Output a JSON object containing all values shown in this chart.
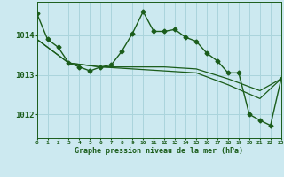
{
  "background_color": "#cce9f0",
  "grid_color": "#aad4dc",
  "line_color": "#1a5c1a",
  "title": "Graphe pression niveau de la mer (hPa)",
  "yticks": [
    1012,
    1013,
    1014
  ],
  "ylim": [
    1011.4,
    1014.85
  ],
  "xlim": [
    0,
    23
  ],
  "series1_x": [
    0,
    1,
    2,
    3,
    4,
    5,
    6,
    7,
    8,
    9,
    10,
    11,
    12,
    13,
    14,
    15,
    16,
    17,
    18,
    19,
    20,
    21,
    22,
    23
  ],
  "series1_y": [
    1014.55,
    1013.9,
    1013.7,
    1013.3,
    1013.2,
    1013.1,
    1013.2,
    1013.25,
    1013.6,
    1014.05,
    1014.6,
    1014.1,
    1014.1,
    1014.15,
    1013.95,
    1013.85,
    1013.55,
    1013.35,
    1013.05,
    1013.05,
    1012.0,
    1011.85,
    1011.72,
    1012.9
  ],
  "series2_x": [
    0,
    3,
    6,
    9,
    12,
    15,
    18,
    21,
    23
  ],
  "series2_y": [
    1013.9,
    1013.3,
    1013.2,
    1013.2,
    1013.2,
    1013.15,
    1012.9,
    1012.6,
    1012.9
  ],
  "series3_x": [
    0,
    3,
    6,
    9,
    12,
    15,
    18,
    21,
    23
  ],
  "series3_y": [
    1013.9,
    1013.3,
    1013.2,
    1013.15,
    1013.1,
    1013.05,
    1012.75,
    1012.4,
    1012.9
  ],
  "marker": "D",
  "markersize": 2.5
}
